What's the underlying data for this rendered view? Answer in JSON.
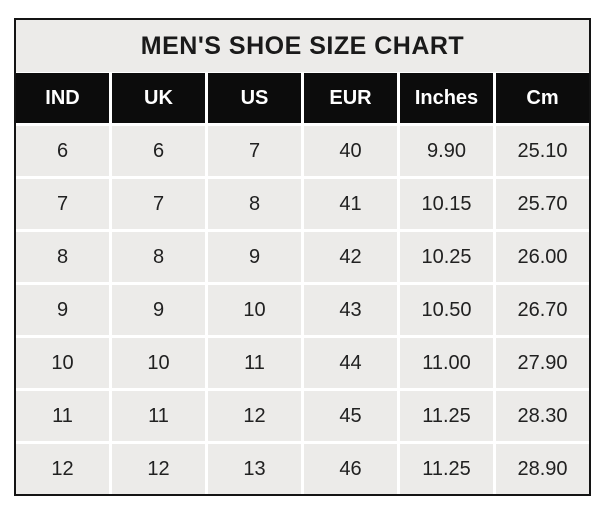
{
  "title": "MEN'S SHOE SIZE CHART",
  "table": {
    "columns": [
      "IND",
      "UK",
      "US",
      "EUR",
      "Inches",
      "Cm"
    ],
    "rows": [
      [
        "6",
        "6",
        "7",
        "40",
        "9.90",
        "25.10"
      ],
      [
        "7",
        "7",
        "8",
        "41",
        "10.15",
        "25.70"
      ],
      [
        "8",
        "8",
        "9",
        "42",
        "10.25",
        "26.00"
      ],
      [
        "9",
        "9",
        "10",
        "43",
        "10.50",
        "26.70"
      ],
      [
        "10",
        "10",
        "11",
        "44",
        "11.00",
        "27.90"
      ],
      [
        "11",
        "11",
        "12",
        "45",
        "11.25",
        "28.30"
      ],
      [
        "12",
        "12",
        "13",
        "46",
        "11.25",
        "28.90"
      ]
    ]
  },
  "colors": {
    "header_bg": "#0c0c0c",
    "header_text": "#ffffff",
    "cell_bg": "#ECEBE9",
    "gridline": "#ffffff",
    "border": "#141414",
    "text": "#212121"
  },
  "chart_data": {
    "type": "table",
    "title": "MEN'S SHOE SIZE CHART",
    "columns": [
      "IND",
      "UK",
      "US",
      "EUR",
      "Inches",
      "Cm"
    ],
    "rows": [
      [
        6,
        6,
        7,
        40,
        9.9,
        25.1
      ],
      [
        7,
        7,
        8,
        41,
        10.15,
        25.7
      ],
      [
        8,
        8,
        9,
        42,
        10.25,
        26.0
      ],
      [
        9,
        9,
        10,
        43,
        10.5,
        26.7
      ],
      [
        10,
        10,
        11,
        44,
        11.0,
        27.9
      ],
      [
        11,
        11,
        12,
        45,
        11.25,
        28.3
      ],
      [
        12,
        12,
        13,
        46,
        11.25,
        28.9
      ]
    ],
    "legend_position": "none",
    "grid": true
  }
}
